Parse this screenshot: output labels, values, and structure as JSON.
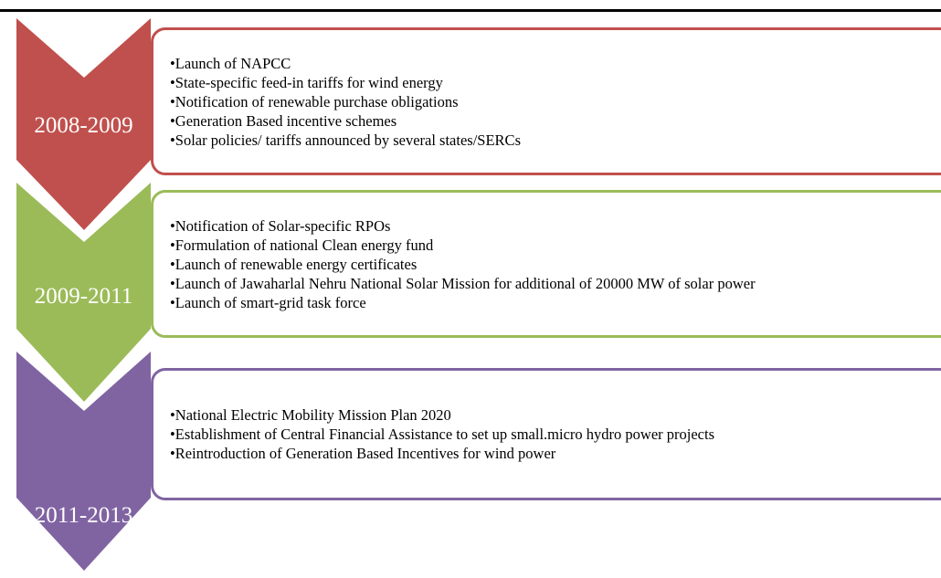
{
  "sections": [
    {
      "period": "2008-2009",
      "items": [
        "Launch of NAPCC",
        "State-specific feed-in tariffs for wind energy",
        "Notification of renewable purchase obligations",
        "Generation Based incentive schemes",
        "Solar policies/ tariffs announced by several states/SERCs"
      ]
    },
    {
      "period": "2009-2011",
      "items": [
        "Notification of Solar-specific RPOs",
        "Formulation of national Clean energy fund",
        "Launch of renewable energy certificates",
        "Launch of Jawaharlal Nehru National Solar Mission for additional of 20000 MW of solar power",
        "Launch of smart-grid task force"
      ]
    },
    {
      "period": "2011-2013",
      "items": [
        "National Electric Mobility Mission Plan 2020",
        "Establishment of Central Financial Assistance to set up small.micro hydro power projects",
        "Reintroduction of Generation Based Incentives for wind power"
      ]
    }
  ]
}
